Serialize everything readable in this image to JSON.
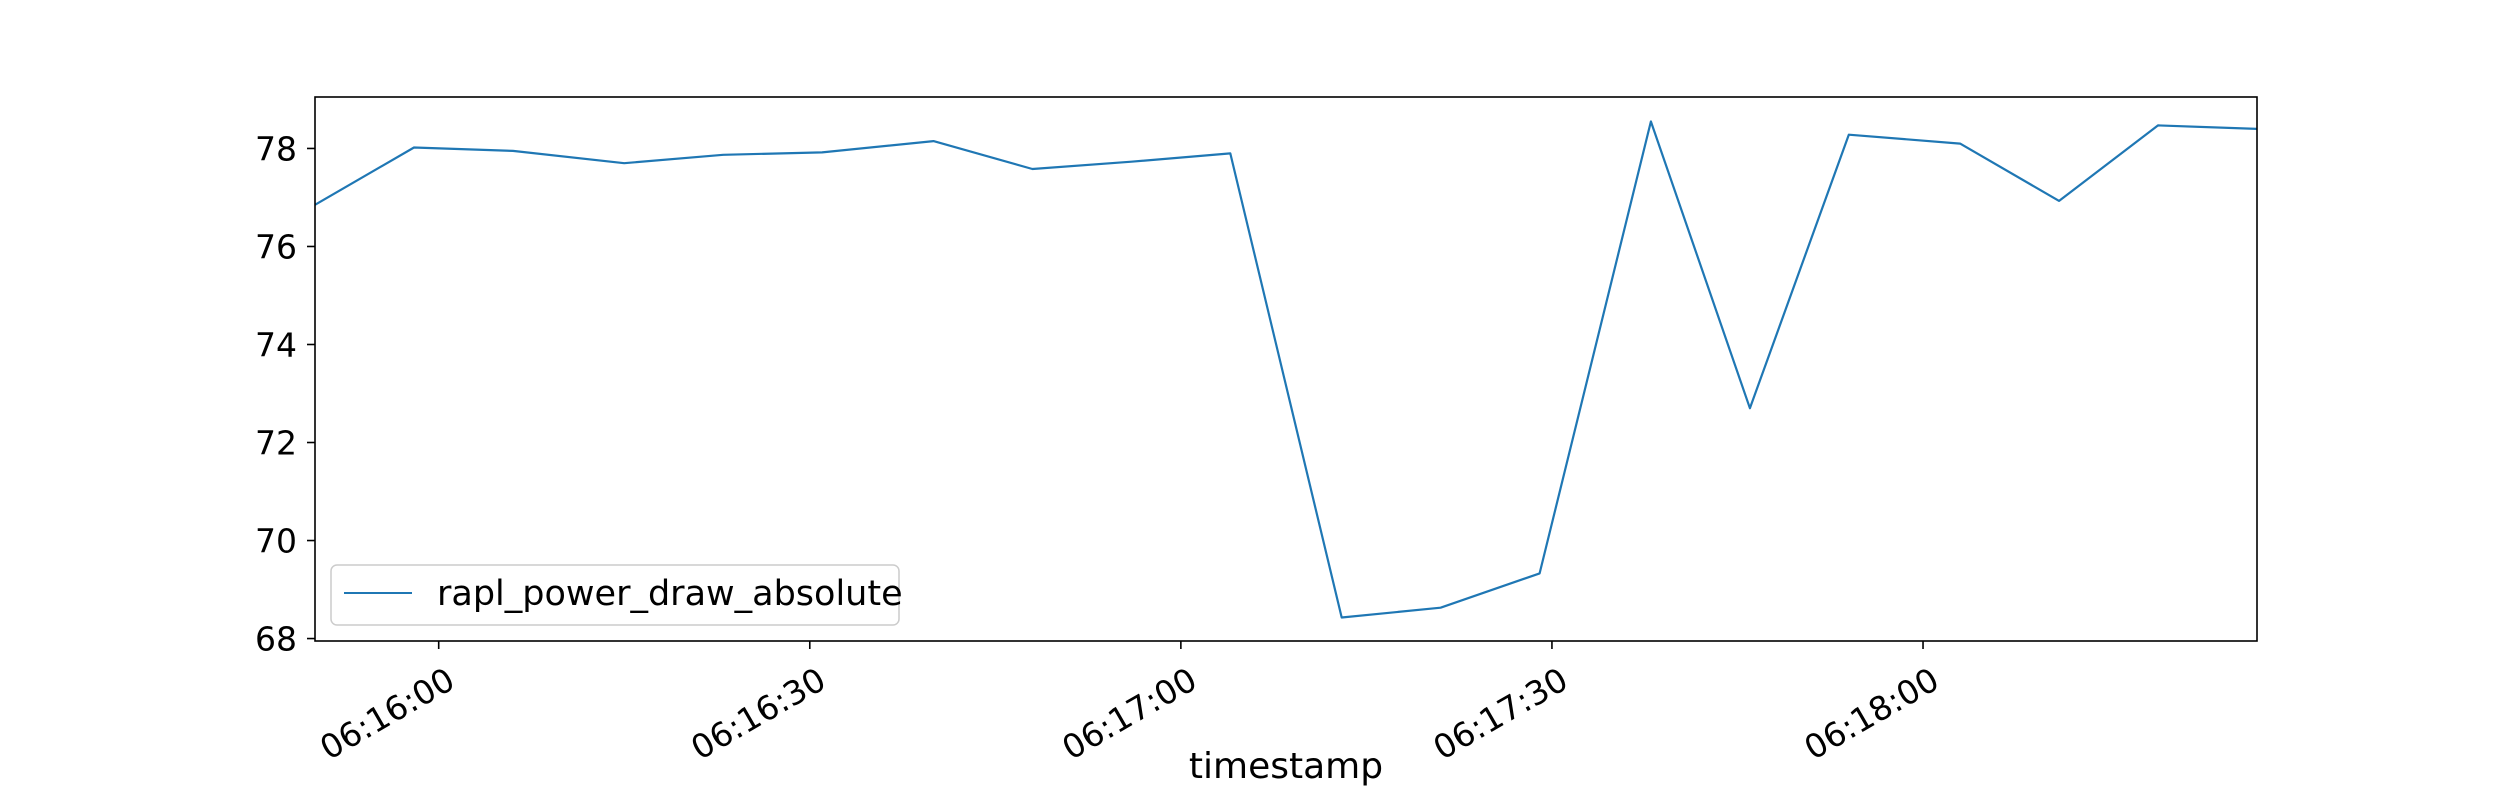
{
  "chart_data": {
    "type": "line",
    "title": "",
    "xlabel": "timestamp",
    "ylabel": "",
    "x_ticks": [
      "06:16:00",
      "06:16:30",
      "06:17:00",
      "06:17:30",
      "06:18:00"
    ],
    "x_tick_times": [
      "06:16:00",
      "06:16:30",
      "06:17:00",
      "06:17:30",
      "06:18:00"
    ],
    "xlim": [
      "06:15:50",
      "06:18:27"
    ],
    "y_ticks": [
      68,
      70,
      72,
      74,
      76,
      78
    ],
    "ylim": [
      67.95,
      79.05
    ],
    "grid": false,
    "legend_position": "lower-left",
    "series": [
      {
        "name": "rapl_power_draw_absolute",
        "color": "#1f77b4",
        "x": [
          "06:15:50",
          "06:15:58",
          "06:16:06",
          "06:16:15",
          "06:16:23",
          "06:16:31",
          "06:16:40",
          "06:16:48",
          "06:16:56",
          "06:17:04",
          "06:17:13",
          "06:17:21",
          "06:17:29",
          "06:17:38",
          "06:17:46",
          "06:17:54",
          "06:18:03",
          "06:18:11",
          "06:18:19",
          "06:18:27"
        ],
        "y": [
          76.85,
          78.02,
          77.95,
          77.7,
          77.87,
          77.92,
          78.15,
          77.58,
          77.73,
          77.9,
          68.43,
          68.63,
          69.33,
          78.55,
          72.7,
          78.28,
          78.1,
          76.93,
          78.47,
          78.4
        ]
      }
    ]
  }
}
